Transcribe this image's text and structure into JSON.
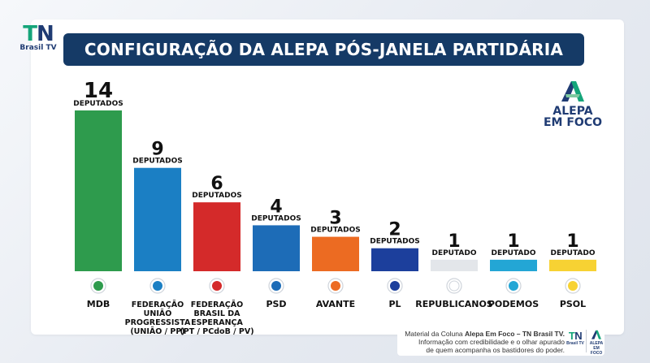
{
  "header": {
    "tn_logo_text": "TN",
    "tn_logo_sub": "Brasil TV",
    "title": "CONFIGURAÇÃO DA ALEPA PÓS-JANELA PARTIDÁRIA"
  },
  "alepa_logo": {
    "line1": "ALEPA",
    "line2": "EM FOCO"
  },
  "chart_data": {
    "type": "bar",
    "title": "CONFIGURAÇÃO DA ALEPA PÓS-JANELA PARTIDÁRIA",
    "categories": [
      "MDB",
      "FEDERAÇÃO UNIÃO PROGRESSISTA (UNIÃO / PP)",
      "FEDERAÇÃO BRASIL DA ESPERANÇA (PT / PCdoB / PV)",
      "PSD",
      "AVANTE",
      "PL",
      "REPUBLICANOS",
      "PODEMOS",
      "PSOL"
    ],
    "category_lines": [
      [
        "MDB"
      ],
      [
        "FEDERAÇÃO",
        "UNIÃO",
        "PROGRESSISTA",
        "(UNIÃO / PP)"
      ],
      [
        "FEDERAÇÃO",
        "BRASIL DA",
        "ESPERANÇA",
        "(PT / PCdoB / PV)"
      ],
      [
        "PSD"
      ],
      [
        "AVANTE"
      ],
      [
        "PL"
      ],
      [
        "REPUBLICANOS"
      ],
      [
        "PODEMOS"
      ],
      [
        "PSOL"
      ]
    ],
    "values": [
      14,
      9,
      6,
      4,
      3,
      2,
      1,
      1,
      1
    ],
    "unit_labels": [
      "DEPUTADOS",
      "DEPUTADOS",
      "DEPUTADOS",
      "DEPUTADOS",
      "DEPUTADOS",
      "DEPUTADOS",
      "DEPUTADO",
      "DEPUTADO",
      "DEPUTADO"
    ],
    "colors": [
      "#2e9b4d",
      "#1b7fc4",
      "#d42a2a",
      "#1d6cb7",
      "#ec6b22",
      "#1c3f9c",
      "#e3e6ea",
      "#23a6d5",
      "#f7d233"
    ],
    "ylim": [
      0,
      14
    ],
    "grid": false,
    "legend": "none"
  },
  "footer": {
    "line1_prefix": "Material da Coluna ",
    "line1_bold": "Alepa Em Foco – TN Brasil TV.",
    "line2": "Informação com credibilidade e o olhar apurado",
    "line3": "de quem acompanha os bastidores do poder.",
    "mini_tn": "TN",
    "mini_tn_sub": "Brasil TV",
    "mini_alepa_1": "ALEPA",
    "mini_alepa_2": "EM FOCO"
  }
}
